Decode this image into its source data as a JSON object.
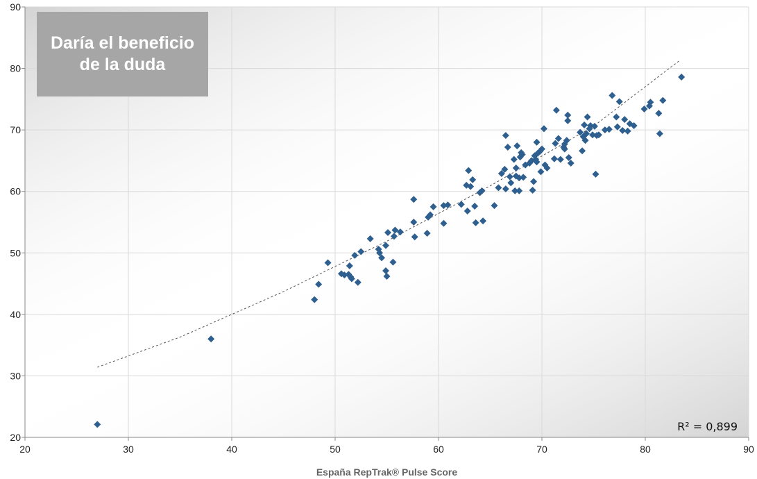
{
  "chart_data": {
    "type": "scatter",
    "title": "Daría el beneficio de la duda",
    "xlabel": "España RepTrak® Pulse Score",
    "ylabel": "",
    "xlim": [
      20,
      90
    ],
    "ylim": [
      20,
      90
    ],
    "xticks": [
      20,
      30,
      40,
      50,
      60,
      70,
      80,
      90
    ],
    "yticks": [
      20,
      30,
      40,
      50,
      60,
      70,
      80,
      90
    ],
    "grid": true,
    "marker_color": "#2e5f8e",
    "trendline": {
      "style": "dashed",
      "color": "#555555",
      "points": [
        [
          27,
          31.4
        ],
        [
          35,
          36.3
        ],
        [
          45,
          43.7
        ],
        [
          55,
          51.9
        ],
        [
          65,
          60.9
        ],
        [
          75,
          70.6
        ],
        [
          83.4,
          81.4
        ]
      ]
    },
    "annotation": "R² = 0,899",
    "points": [
      [
        27.0,
        22.1
      ],
      [
        38.0,
        36.0
      ],
      [
        48.0,
        42.4
      ],
      [
        48.4,
        44.9
      ],
      [
        49.3,
        48.4
      ],
      [
        50.6,
        46.6
      ],
      [
        50.9,
        46.4
      ],
      [
        51.3,
        46.5
      ],
      [
        51.5,
        46.1
      ],
      [
        51.6,
        45.8
      ],
      [
        51.4,
        47.9
      ],
      [
        51.9,
        49.6
      ],
      [
        52.2,
        45.2
      ],
      [
        52.5,
        50.2
      ],
      [
        53.4,
        52.3
      ],
      [
        54.2,
        50.6
      ],
      [
        54.3,
        50.0
      ],
      [
        54.5,
        49.2
      ],
      [
        54.9,
        51.2
      ],
      [
        54.9,
        47.1
      ],
      [
        55.0,
        46.2
      ],
      [
        55.1,
        53.3
      ],
      [
        55.6,
        48.5
      ],
      [
        55.7,
        52.7
      ],
      [
        55.8,
        53.7
      ],
      [
        56.3,
        53.4
      ],
      [
        57.6,
        55.0
      ],
      [
        57.6,
        58.7
      ],
      [
        57.7,
        52.6
      ],
      [
        58.9,
        53.2
      ],
      [
        59.0,
        55.8
      ],
      [
        59.2,
        56.2
      ],
      [
        59.5,
        57.5
      ],
      [
        60.5,
        57.7
      ],
      [
        60.5,
        54.8
      ],
      [
        60.9,
        57.8
      ],
      [
        62.2,
        57.9
      ],
      [
        62.7,
        61.0
      ],
      [
        62.8,
        56.8
      ],
      [
        62.9,
        63.4
      ],
      [
        63.1,
        60.8
      ],
      [
        63.3,
        61.9
      ],
      [
        63.5,
        57.6
      ],
      [
        63.6,
        54.9
      ],
      [
        64.0,
        59.8
      ],
      [
        64.2,
        60.1
      ],
      [
        64.3,
        55.2
      ],
      [
        65.4,
        57.7
      ],
      [
        65.8,
        60.6
      ],
      [
        66.1,
        62.9
      ],
      [
        66.4,
        63.6
      ],
      [
        66.5,
        60.4
      ],
      [
        66.5,
        69.1
      ],
      [
        66.7,
        67.2
      ],
      [
        66.9,
        62.4
      ],
      [
        67.0,
        61.4
      ],
      [
        67.3,
        65.2
      ],
      [
        67.4,
        60.1
      ],
      [
        67.5,
        63.8
      ],
      [
        67.5,
        62.5
      ],
      [
        67.6,
        67.4
      ],
      [
        67.8,
        62.2
      ],
      [
        67.8,
        60.1
      ],
      [
        67.9,
        65.6
      ],
      [
        68.0,
        66.3
      ],
      [
        68.1,
        66.0
      ],
      [
        68.2,
        62.3
      ],
      [
        68.4,
        64.3
      ],
      [
        68.8,
        64.6
      ],
      [
        69.0,
        65.0
      ],
      [
        69.1,
        60.2
      ],
      [
        69.2,
        61.6
      ],
      [
        69.3,
        65.8
      ],
      [
        69.4,
        65.2
      ],
      [
        69.5,
        64.8
      ],
      [
        69.5,
        68.0
      ],
      [
        69.6,
        66.2
      ],
      [
        69.8,
        66.5
      ],
      [
        69.9,
        63.2
      ],
      [
        70.0,
        66.9
      ],
      [
        70.2,
        70.2
      ],
      [
        70.3,
        64.3
      ],
      [
        70.5,
        63.8
      ],
      [
        71.2,
        65.3
      ],
      [
        71.3,
        67.8
      ],
      [
        71.4,
        73.2
      ],
      [
        71.6,
        68.6
      ],
      [
        71.8,
        65.2
      ],
      [
        72.1,
        67.2
      ],
      [
        72.2,
        66.9
      ],
      [
        72.2,
        67.7
      ],
      [
        72.4,
        68.3
      ],
      [
        72.5,
        72.4
      ],
      [
        72.5,
        71.5
      ],
      [
        72.6,
        65.5
      ],
      [
        72.8,
        64.6
      ],
      [
        73.7,
        69.6
      ],
      [
        73.9,
        66.6
      ],
      [
        74.0,
        68.9
      ],
      [
        74.1,
        70.8
      ],
      [
        74.2,
        68.3
      ],
      [
        74.3,
        69.4
      ],
      [
        74.4,
        72.1
      ],
      [
        74.6,
        70.2
      ],
      [
        74.7,
        70.7
      ],
      [
        74.9,
        69.2
      ],
      [
        75.1,
        70.6
      ],
      [
        75.3,
        69.1
      ],
      [
        75.5,
        69.2
      ],
      [
        75.2,
        62.8
      ],
      [
        76.1,
        70.0
      ],
      [
        76.5,
        70.1
      ],
      [
        76.8,
        75.6
      ],
      [
        77.2,
        72.1
      ],
      [
        77.3,
        70.5
      ],
      [
        77.5,
        74.6
      ],
      [
        77.8,
        69.9
      ],
      [
        78.0,
        71.7
      ],
      [
        78.3,
        69.8
      ],
      [
        78.5,
        71.0
      ],
      [
        78.9,
        70.7
      ],
      [
        79.9,
        73.4
      ],
      [
        80.4,
        73.9
      ],
      [
        80.5,
        74.5
      ],
      [
        81.3,
        72.7
      ],
      [
        81.4,
        69.4
      ],
      [
        81.7,
        74.8
      ],
      [
        83.5,
        78.6
      ]
    ]
  }
}
